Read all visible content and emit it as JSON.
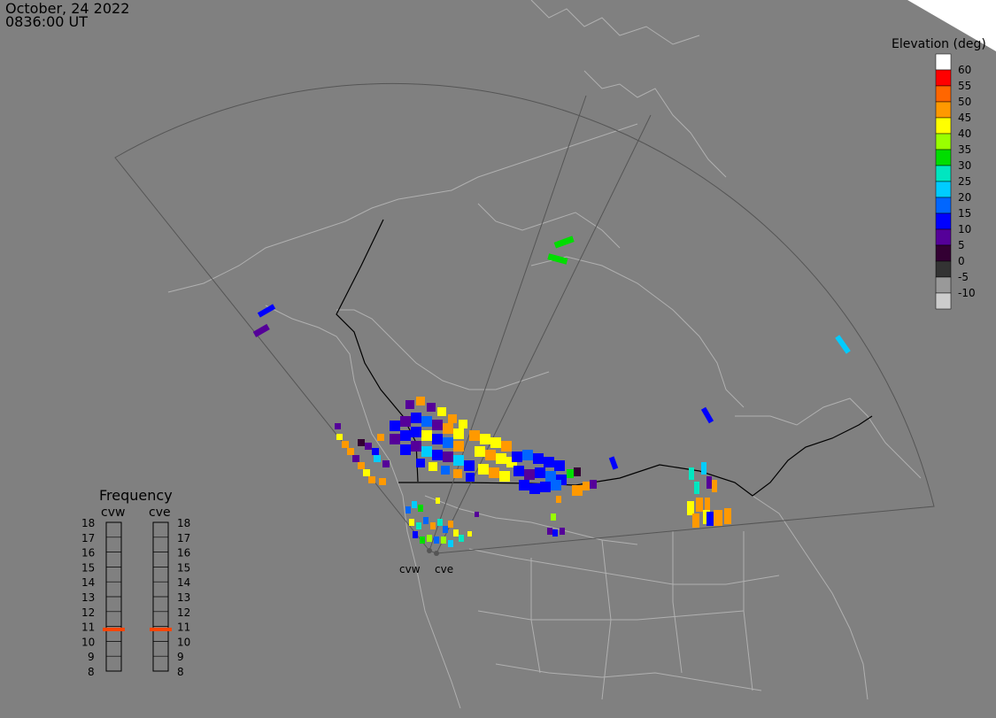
{
  "header": {
    "date": "October, 24 2022",
    "time": "0836:00 UT"
  },
  "elevation_legend": {
    "title": "Elevation (deg)",
    "items": [
      {
        "label": "60",
        "color": "#ffffff"
      },
      {
        "label": "55",
        "color": "#ff0000"
      },
      {
        "label": "50",
        "color": "#ff6600"
      },
      {
        "label": "45",
        "color": "#ff9900"
      },
      {
        "label": "40",
        "color": "#ffff00"
      },
      {
        "label": "35",
        "color": "#99ff00"
      },
      {
        "label": "30",
        "color": "#00dd00"
      },
      {
        "label": "25",
        "color": "#00e6c0"
      },
      {
        "label": "20",
        "color": "#00ccff"
      },
      {
        "label": "15",
        "color": "#0066ff"
      },
      {
        "label": "10",
        "color": "#0000ff"
      },
      {
        "label": "5",
        "color": "#550099"
      },
      {
        "label": "0",
        "color": "#330033"
      },
      {
        "label": "-5",
        "color": "#333333"
      },
      {
        "label": "-10",
        "color": "#999999"
      },
      {
        "label": "",
        "color": "#cccccc"
      }
    ]
  },
  "frequency": {
    "title": "Frequency",
    "radars": [
      "cvw",
      "cve"
    ],
    "ticks": [
      "18",
      "17",
      "16",
      "15",
      "14",
      "13",
      "12",
      "11",
      "10",
      "9",
      "8"
    ],
    "values": {
      "cvw": 10.8,
      "cve": 10.8
    },
    "marker_color": "#ff4400"
  },
  "stations": [
    {
      "name": "cvw"
    },
    {
      "name": "cve"
    }
  ]
}
